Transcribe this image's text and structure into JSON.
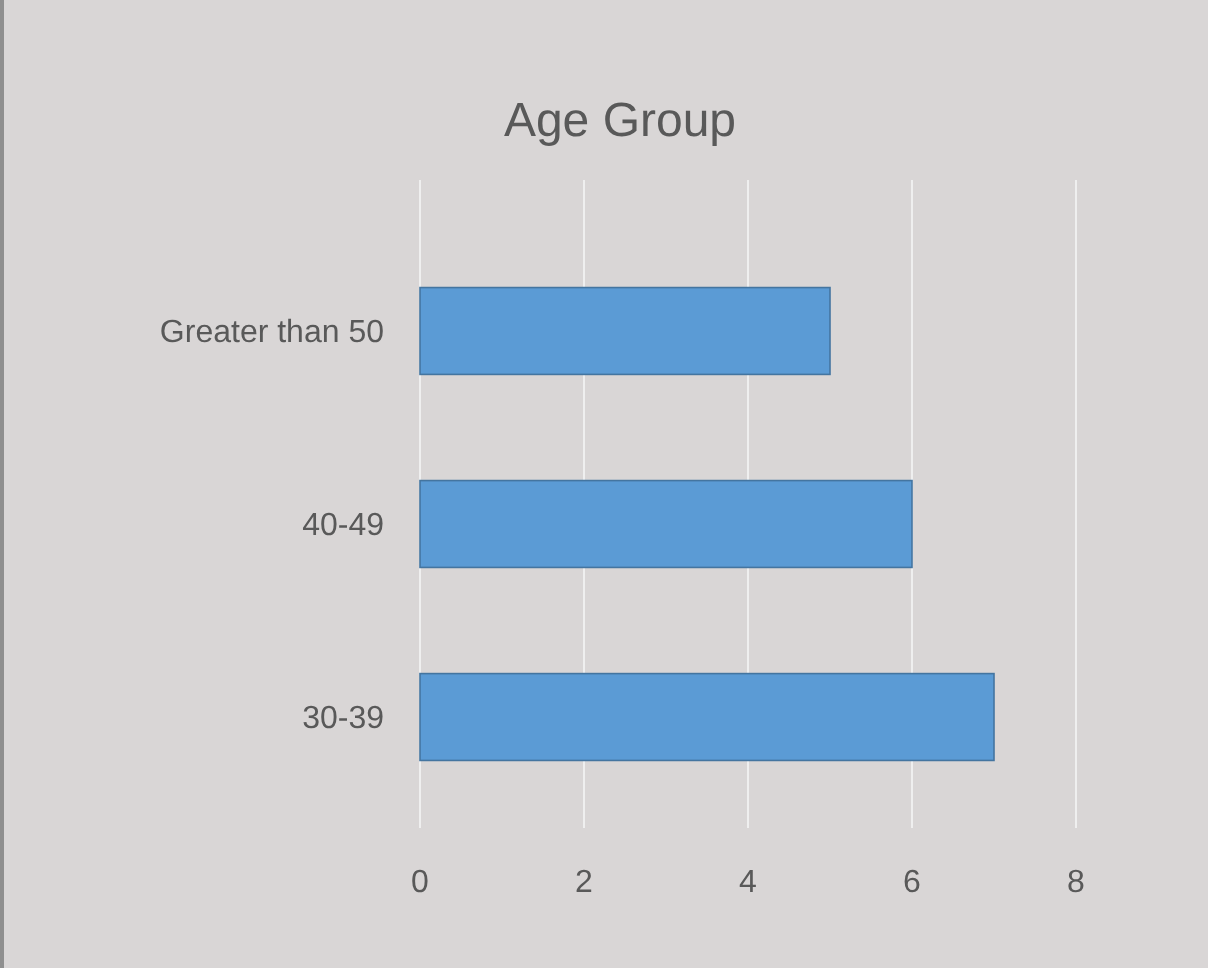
{
  "chart_data": {
    "type": "bar",
    "orientation": "horizontal",
    "title": "Age Group",
    "categories": [
      "Greater than 50",
      "40-49",
      "30-39"
    ],
    "values": [
      5,
      6,
      7
    ],
    "color": "#5b9bd5",
    "xlim": [
      0,
      8
    ],
    "xticks": [
      0,
      2,
      4,
      6,
      8
    ],
    "grid": "x"
  }
}
